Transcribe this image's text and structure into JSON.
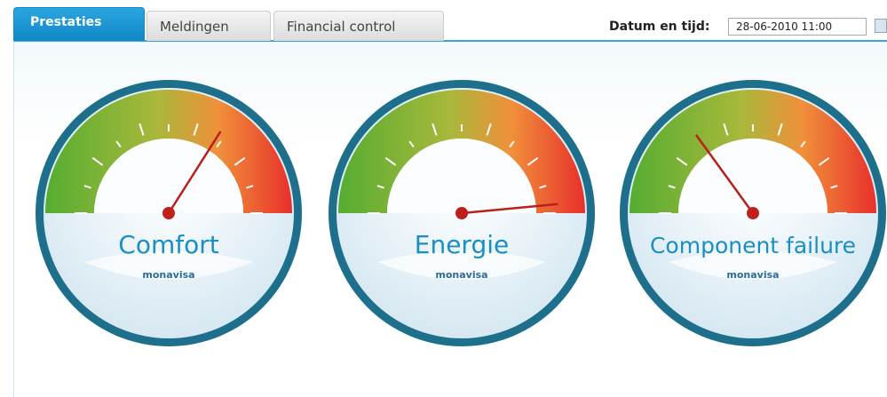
{
  "tabs": [
    {
      "label": "Prestaties"
    },
    {
      "label": "Meldingen"
    },
    {
      "label": "Financial control"
    }
  ],
  "datetime": {
    "label": "Datum en tijd:",
    "value": "28-06-2010 11:00"
  },
  "gauge_range": [
    0,
    100
  ],
  "gauges": [
    {
      "label": "Comfort",
      "logo": "monavisa",
      "value": 68
    },
    {
      "label": "Energie",
      "logo": "monavisa",
      "value": 97
    },
    {
      "label": "Component failure",
      "logo": "monavisa",
      "value": 30
    }
  ]
}
